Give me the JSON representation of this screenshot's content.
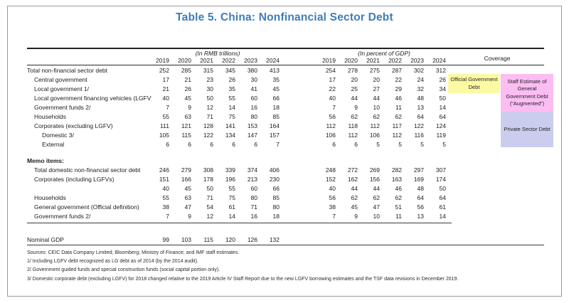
{
  "title": "Table 5. China: Nonfinancial Sector Debt",
  "theme": {
    "title_color": "#3e7cb8"
  },
  "header": {
    "group1": "(In RMB trillions)",
    "group2": "(In percent of GDP)",
    "coverage": "Coverage",
    "years": [
      "2019",
      "2020",
      "2021",
      "2022",
      "2023",
      "2024"
    ]
  },
  "rows": [
    {
      "label": "Total non-financial sector debt",
      "indent": 0,
      "rmb": [
        252,
        285,
        315,
        345,
        380,
        413
      ],
      "pct": [
        254,
        278,
        275,
        287,
        302,
        312
      ]
    },
    {
      "label": "Central government",
      "indent": 1,
      "rmb": [
        17,
        21,
        23,
        26,
        30,
        35
      ],
      "pct": [
        17,
        20,
        20,
        22,
        24,
        26
      ]
    },
    {
      "label": "Local government 1/",
      "indent": 1,
      "rmb": [
        21,
        26,
        30,
        35,
        41,
        45
      ],
      "pct": [
        22,
        25,
        27,
        29,
        32,
        34
      ]
    },
    {
      "label": "Local government financing vehicles (LGFV)",
      "indent": 1,
      "rmb": [
        40,
        45,
        50,
        55,
        60,
        66
      ],
      "pct": [
        40,
        44,
        44,
        46,
        48,
        50
      ]
    },
    {
      "label": "Government funds 2/",
      "indent": 1,
      "rmb": [
        7,
        9,
        12,
        14,
        16,
        18
      ],
      "pct": [
        7,
        9,
        10,
        11,
        13,
        14
      ]
    },
    {
      "label": "Households",
      "indent": 1,
      "rmb": [
        55,
        63,
        71,
        75,
        80,
        85
      ],
      "pct": [
        56,
        62,
        62,
        62,
        64,
        64
      ]
    },
    {
      "label": "Corporates (excluding LGFV)",
      "indent": 1,
      "rmb": [
        111,
        121,
        128,
        141,
        153,
        164
      ],
      "pct": [
        112,
        118,
        112,
        117,
        122,
        124
      ]
    },
    {
      "label": "Domestic 3/",
      "indent": 2,
      "rmb": [
        105,
        115,
        122,
        134,
        147,
        157
      ],
      "pct": [
        106,
        112,
        106,
        112,
        116,
        119
      ]
    },
    {
      "label": "External",
      "indent": 2,
      "rmb": [
        6,
        6,
        6,
        6,
        6,
        7
      ],
      "pct": [
        6,
        6,
        5,
        5,
        5,
        5
      ]
    }
  ],
  "memo": {
    "heading": "Memo items:",
    "rows": [
      {
        "label": "Total domestic non-financial sector debt",
        "indent": 1,
        "rmb": [
          246,
          279,
          308,
          339,
          374,
          406
        ],
        "pct": [
          248,
          272,
          269,
          282,
          297,
          307
        ]
      },
      {
        "label": "Corporates (including LGFVs)",
        "indent": 1,
        "rmb": [
          151,
          166,
          178,
          196,
          213,
          230
        ],
        "pct": [
          152,
          162,
          156,
          163,
          169,
          174
        ]
      },
      {
        "label": "",
        "indent": 1,
        "rmb": [
          40,
          45,
          50,
          55,
          60,
          66
        ],
        "pct": [
          40,
          44,
          44,
          46,
          48,
          50
        ]
      },
      {
        "label": "Households",
        "indent": 1,
        "rmb": [
          55,
          63,
          71,
          75,
          80,
          85
        ],
        "pct": [
          56,
          62,
          62,
          62,
          64,
          64
        ]
      },
      {
        "label": "General government (Official definition)",
        "indent": 1,
        "rmb": [
          38,
          47,
          54,
          61,
          71,
          80
        ],
        "pct": [
          38,
          45,
          47,
          51,
          56,
          61
        ]
      },
      {
        "label": "Government funds 2/",
        "indent": 1,
        "rmb": [
          7,
          9,
          12,
          14,
          16,
          18
        ],
        "pct": [
          7,
          9,
          10,
          11,
          13,
          14
        ]
      }
    ]
  },
  "gdp_row": {
    "label": "Nominal GDP",
    "indent": 0,
    "rmb": [
      99,
      103,
      115,
      120,
      126,
      132
    ],
    "pct": [
      "",
      "",
      "",
      "",
      "",
      ""
    ]
  },
  "coverage_boxes": {
    "official": {
      "text": "Official Government Debt",
      "color": "#fcf9a4"
    },
    "augmented": {
      "text": "Staff Estimate of General Government Debt (“Augmented”)",
      "color": "#fbbdf2"
    },
    "private": {
      "text": "Private Sector Debt",
      "color": "#cacdee"
    }
  },
  "footnotes": [
    "Sources: CEIC Data Company Limited; Bloomberg; Ministry of Finance; and IMF staff estimates.",
    "1/ Including LGFV debt recognized as LG debt as of 2014 (by the 2014 audit).",
    "2/ Government guided funds and special construction funds (social capital portion only).",
    "3/ Domestic corporate debt (excluding LGFV) for 2018 changed relative to the 2019 Article IV Staff Report due to the new LGFV borrowing estimates and the TSF data revisions in December 2019."
  ]
}
